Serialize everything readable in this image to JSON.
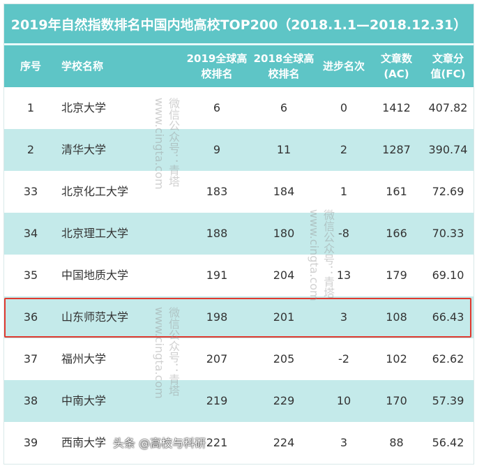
{
  "title": "2019年自然指数排名中国内地高校TOP200（2018.1.1—2018.12.31）",
  "columns": [
    "序号",
    "学校名称",
    "2019全球高校排名",
    "2018全球高校排名",
    "进步名次",
    "文章数(AC)",
    "文章分值(FC)"
  ],
  "rows": [
    [
      "1",
      "北京大学",
      "6",
      "6",
      "0",
      "1412",
      "407.82"
    ],
    [
      "2",
      "清华大学",
      "9",
      "11",
      "2",
      "1287",
      "390.74"
    ],
    [
      "33",
      "北京化工大学",
      "183",
      "184",
      "1",
      "161",
      "72.69"
    ],
    [
      "34",
      "北京理工大学",
      "188",
      "180",
      "-8",
      "166",
      "70.33"
    ],
    [
      "35",
      "中国地质大学",
      "191",
      "204",
      "13",
      "179",
      "69.10"
    ],
    [
      "36",
      "山东师范大学",
      "198",
      "201",
      "3",
      "108",
      "66.43"
    ],
    [
      "37",
      "福州大学",
      "207",
      "205",
      "-2",
      "102",
      "62.62"
    ],
    [
      "38",
      "中南大学",
      "219",
      "229",
      "10",
      "170",
      "57.39"
    ],
    [
      "39",
      "西南大学",
      "221",
      "224",
      "3",
      "88",
      "56.42"
    ]
  ],
  "highlighted_row": "36",
  "watermark_line1": "微信公众号：青塔",
  "watermark_line2": "www.cingta.com",
  "source_credit": "头条 @高校与科研",
  "colors": {
    "header": "#5ec5c6",
    "alt_row": "#c4eaea",
    "highlight": "#e0392f"
  }
}
